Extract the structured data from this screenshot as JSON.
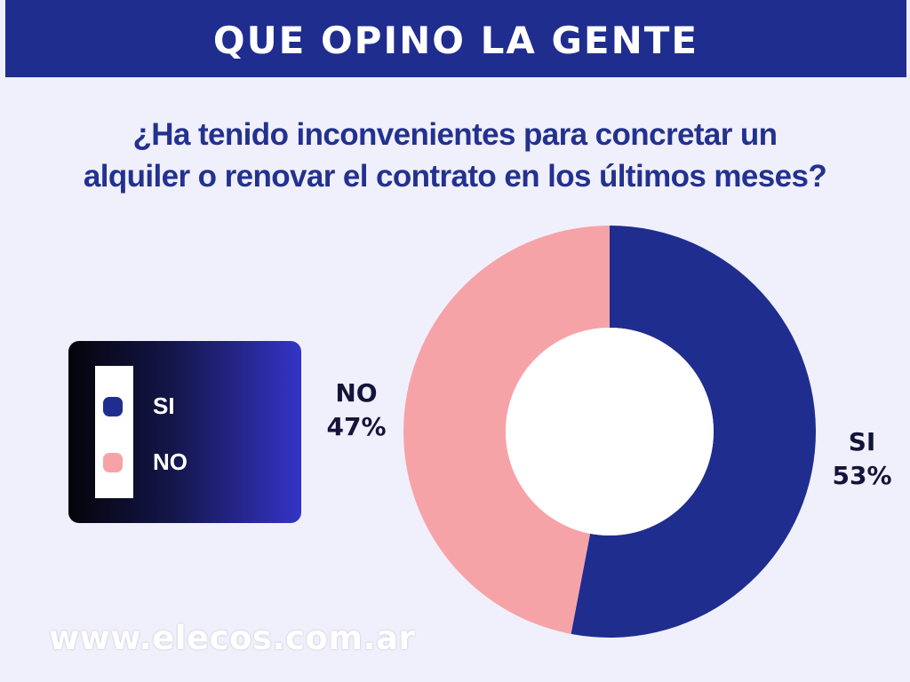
{
  "header": {
    "title": "QUE OPINO LA GENTE"
  },
  "question": {
    "line1": "¿Ha tenido inconvenientes para concretar un",
    "line2": "alquiler o renovar el contrato en los últimos meses?"
  },
  "legend": {
    "items": [
      {
        "label": "SI",
        "color": "#1f2d8f"
      },
      {
        "label": "NO",
        "color": "#f6a3a8"
      }
    ]
  },
  "chart_data": {
    "type": "pie",
    "variant": "donut",
    "title": "¿Ha tenido inconvenientes para concretar un alquiler o renovar el contrato en los últimos meses?",
    "categories": [
      "SI",
      "NO"
    ],
    "values": [
      53,
      47
    ],
    "unit": "%",
    "data_labels": [
      {
        "name": "SI",
        "value": "53%"
      },
      {
        "name": "NO",
        "value": "47%"
      }
    ],
    "colors": [
      "#1f2d8f",
      "#f6a3a8"
    ],
    "start_angle": "12 o'clock",
    "direction": "clockwise",
    "legend_position": "left"
  },
  "footer": {
    "website": "www.elecos.com.ar"
  },
  "colors": {
    "header_bg": "#1f2d8f",
    "background": "#f0f0fc",
    "question_text": "#23318f"
  }
}
